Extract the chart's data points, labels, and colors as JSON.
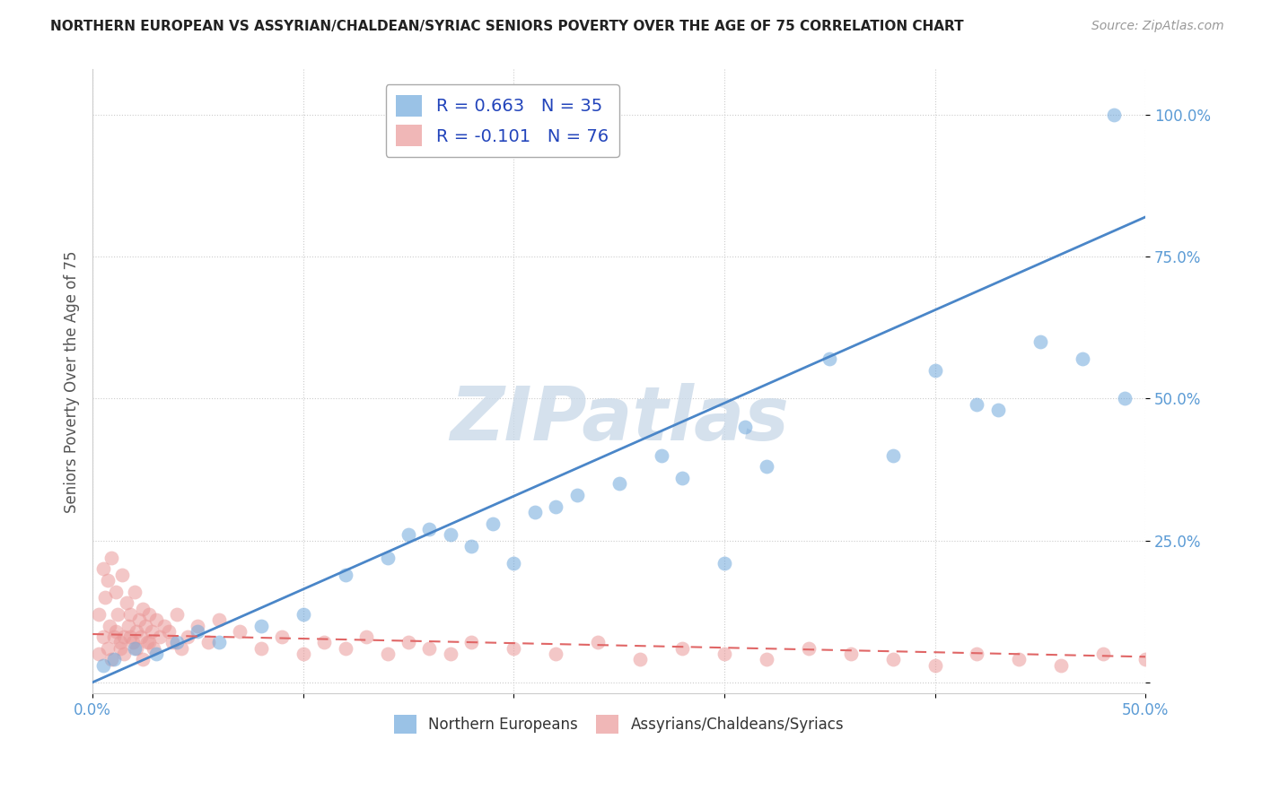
{
  "title": "NORTHERN EUROPEAN VS ASSYRIAN/CHALDEAN/SYRIAC SENIORS POVERTY OVER THE AGE OF 75 CORRELATION CHART",
  "source": "Source: ZipAtlas.com",
  "ylabel": "Seniors Poverty Over the Age of 75",
  "xlim": [
    0.0,
    0.5
  ],
  "ylim": [
    -0.02,
    1.08
  ],
  "xticks": [
    0.0,
    0.1,
    0.2,
    0.3,
    0.4,
    0.5
  ],
  "xticklabels": [
    "0.0%",
    "",
    "",
    "",
    "",
    "50.0%"
  ],
  "yticks": [
    0.0,
    0.25,
    0.5,
    0.75,
    1.0
  ],
  "yticklabels": [
    "",
    "25.0%",
    "50.0%",
    "75.0%",
    "100.0%"
  ],
  "blue_color": "#6fa8dc",
  "pink_color": "#ea9999",
  "trend_blue_color": "#4a86c8",
  "trend_pink_color": "#e06666",
  "watermark_color": "#c8d8e8",
  "background_color": "#ffffff",
  "legend_R1": "R = 0.663",
  "legend_N1": "N = 35",
  "legend_R2": "R = -0.101",
  "legend_N2": "N = 76",
  "blue_trend_x": [
    0.0,
    0.5
  ],
  "blue_trend_y": [
    0.0,
    0.82
  ],
  "pink_trend_x": [
    0.0,
    0.5
  ],
  "pink_trend_y": [
    0.085,
    0.045
  ],
  "blue_scatter_x": [
    0.005,
    0.01,
    0.02,
    0.03,
    0.04,
    0.05,
    0.06,
    0.08,
    0.1,
    0.12,
    0.14,
    0.15,
    0.16,
    0.17,
    0.18,
    0.19,
    0.2,
    0.21,
    0.22,
    0.23,
    0.25,
    0.27,
    0.28,
    0.3,
    0.31,
    0.32,
    0.35,
    0.38,
    0.4,
    0.42,
    0.43,
    0.45,
    0.47,
    0.485,
    0.49
  ],
  "blue_scatter_y": [
    0.03,
    0.04,
    0.06,
    0.05,
    0.07,
    0.09,
    0.07,
    0.1,
    0.12,
    0.19,
    0.22,
    0.26,
    0.27,
    0.26,
    0.24,
    0.28,
    0.21,
    0.3,
    0.31,
    0.33,
    0.35,
    0.4,
    0.36,
    0.21,
    0.45,
    0.38,
    0.57,
    0.4,
    0.55,
    0.49,
    0.48,
    0.6,
    0.57,
    1.0,
    0.5
  ],
  "pink_scatter_x": [
    0.003,
    0.005,
    0.006,
    0.007,
    0.008,
    0.009,
    0.01,
    0.011,
    0.012,
    0.013,
    0.014,
    0.015,
    0.016,
    0.017,
    0.018,
    0.019,
    0.02,
    0.021,
    0.022,
    0.023,
    0.024,
    0.025,
    0.026,
    0.027,
    0.028,
    0.029,
    0.03,
    0.032,
    0.034,
    0.036,
    0.038,
    0.04,
    0.042,
    0.045,
    0.05,
    0.055,
    0.06,
    0.07,
    0.08,
    0.09,
    0.1,
    0.11,
    0.12,
    0.13,
    0.14,
    0.15,
    0.16,
    0.17,
    0.18,
    0.2,
    0.22,
    0.24,
    0.26,
    0.28,
    0.3,
    0.32,
    0.34,
    0.36,
    0.38,
    0.4,
    0.42,
    0.44,
    0.46,
    0.48,
    0.5,
    0.003,
    0.005,
    0.007,
    0.009,
    0.011,
    0.013,
    0.015,
    0.018,
    0.021,
    0.024,
    0.027
  ],
  "pink_scatter_y": [
    0.12,
    0.2,
    0.15,
    0.18,
    0.1,
    0.22,
    0.08,
    0.16,
    0.12,
    0.06,
    0.19,
    0.08,
    0.14,
    0.1,
    0.12,
    0.07,
    0.16,
    0.09,
    0.11,
    0.08,
    0.13,
    0.1,
    0.07,
    0.12,
    0.09,
    0.06,
    0.11,
    0.08,
    0.1,
    0.09,
    0.07,
    0.12,
    0.06,
    0.08,
    0.1,
    0.07,
    0.11,
    0.09,
    0.06,
    0.08,
    0.05,
    0.07,
    0.06,
    0.08,
    0.05,
    0.07,
    0.06,
    0.05,
    0.07,
    0.06,
    0.05,
    0.07,
    0.04,
    0.06,
    0.05,
    0.04,
    0.06,
    0.05,
    0.04,
    0.03,
    0.05,
    0.04,
    0.03,
    0.05,
    0.04,
    0.05,
    0.08,
    0.06,
    0.04,
    0.09,
    0.07,
    0.05,
    0.08,
    0.06,
    0.04,
    0.07
  ]
}
